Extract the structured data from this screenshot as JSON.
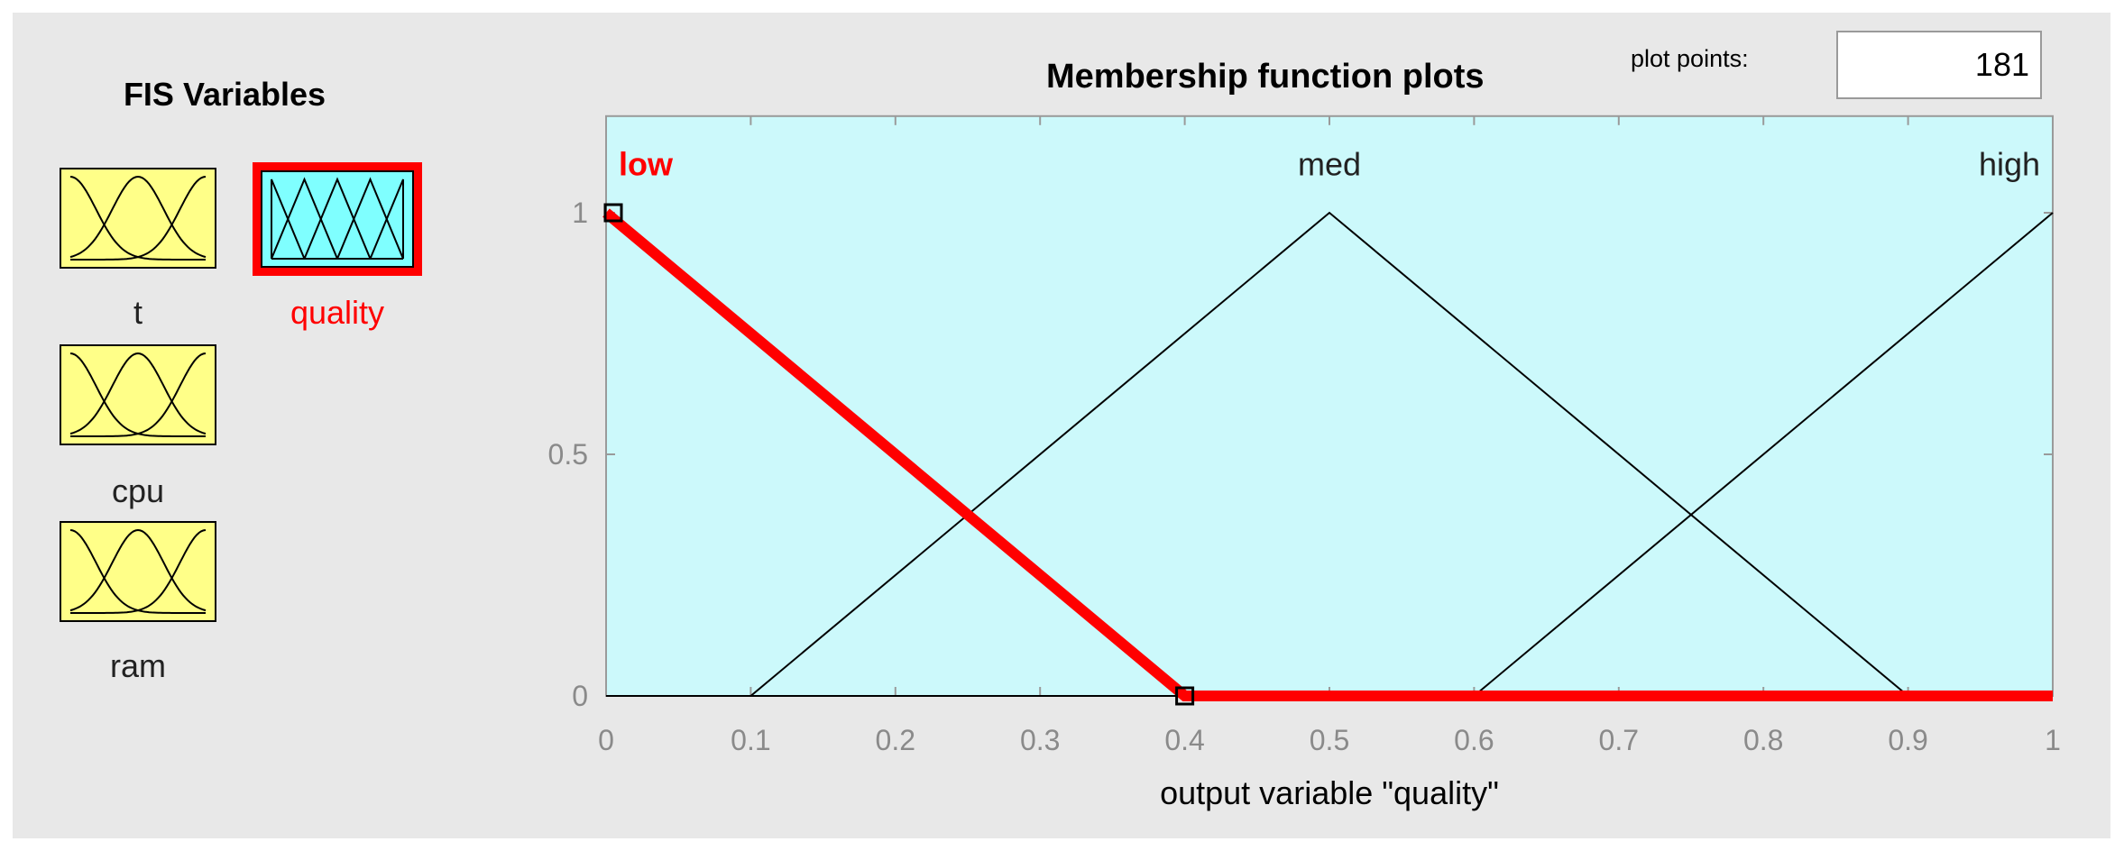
{
  "fis_panel": {
    "title": "FIS Variables",
    "variables": [
      {
        "name": "t",
        "kind": "input",
        "selected": false
      },
      {
        "name": "quality",
        "kind": "output",
        "selected": true
      },
      {
        "name": "cpu",
        "kind": "input",
        "selected": false
      },
      {
        "name": "ram",
        "kind": "input",
        "selected": false
      }
    ]
  },
  "plot_header": {
    "title": "Membership function plots",
    "plot_points_label": "plot points:",
    "plot_points_value": "181"
  },
  "colors": {
    "plot_background": "#ccf9fb",
    "input_tile": "#ffff88",
    "output_tile": "#7fffff",
    "selected": "#ff0000",
    "line": "#000000"
  },
  "chart_data": {
    "type": "line",
    "title": "Membership function plots",
    "xlabel": "output variable \"quality\"",
    "ylabel": "",
    "xlim": [
      0,
      1
    ],
    "ylim": [
      0,
      1.2
    ],
    "x_ticks": [
      "0",
      "0.1",
      "0.2",
      "0.3",
      "0.4",
      "0.5",
      "0.6",
      "0.7",
      "0.8",
      "0.9",
      "1"
    ],
    "y_ticks": [
      "0",
      "0.5",
      "1"
    ],
    "selected_series": "low",
    "series": [
      {
        "name": "low",
        "params": [
          0,
          0,
          0.4
        ],
        "points": [
          [
            0,
            1
          ],
          [
            0.4,
            0
          ],
          [
            1,
            0
          ]
        ]
      },
      {
        "name": "med",
        "params": [
          0.1,
          0.5,
          0.9
        ],
        "points": [
          [
            0,
            0
          ],
          [
            0.1,
            0
          ],
          [
            0.5,
            1
          ],
          [
            0.9,
            0
          ],
          [
            1,
            0
          ]
        ]
      },
      {
        "name": "high",
        "params": [
          0.6,
          1,
          1
        ],
        "points": [
          [
            0,
            0
          ],
          [
            0.6,
            0
          ],
          [
            1,
            1
          ]
        ]
      }
    ]
  }
}
